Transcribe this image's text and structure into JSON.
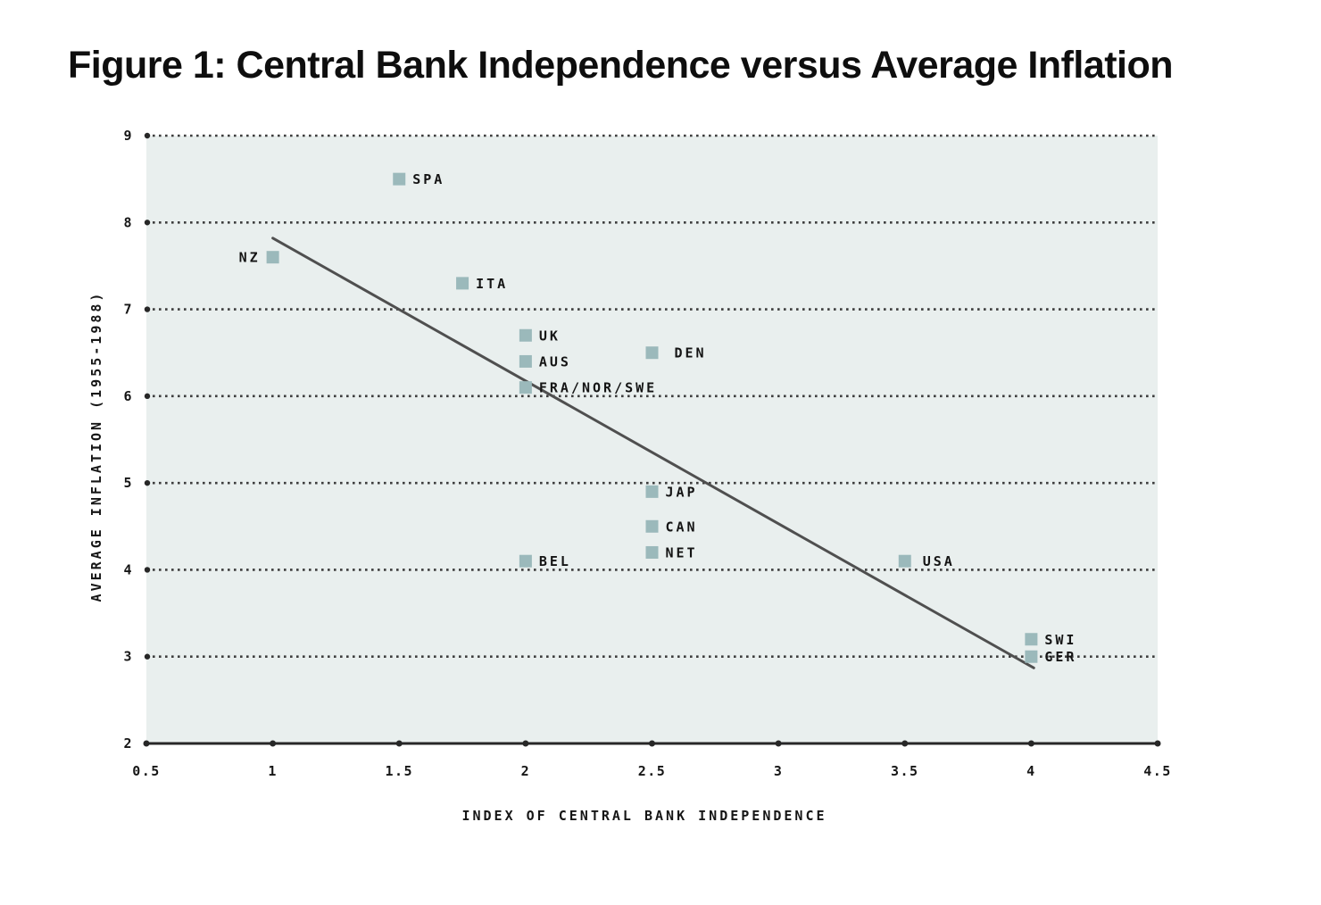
{
  "title": "Figure 1: Central Bank Independence versus Average Inflation",
  "colors": {
    "page_bg": "#ffffff",
    "plot_bg": "#e9efee",
    "marker": "#9bb9bb",
    "grid": "#3d3d3d",
    "axis": "#272727",
    "trend": "#4f4f4f",
    "text": "#161616"
  },
  "chart_data": {
    "type": "scatter",
    "title": "Figure 1: Central Bank Independence versus Average Inflation",
    "xlabel": "INDEX OF CENTRAL BANK INDEPENDENCE",
    "ylabel": "AVERAGE INFLATION (1955-1988)",
    "xlim": [
      0.5,
      4.5
    ],
    "ylim": [
      2,
      9
    ],
    "x_ticks": [
      0.5,
      1,
      1.5,
      2,
      2.5,
      3,
      3.5,
      4,
      4.5
    ],
    "x_tick_labels": [
      "0.5",
      "1",
      "1.5",
      "2",
      "2.5",
      "3",
      "3.5",
      "4",
      "4.5"
    ],
    "y_ticks": [
      2,
      3,
      4,
      5,
      6,
      7,
      8,
      9
    ],
    "y_tick_labels": [
      "2",
      "3",
      "4",
      "5",
      "6",
      "7",
      "8",
      "9"
    ],
    "grid": "horizontal-dotted",
    "legend": "none",
    "points": [
      {
        "label": "SPA",
        "x": 1.5,
        "y": 8.5,
        "side": "right"
      },
      {
        "label": "NZ",
        "x": 1.0,
        "y": 7.6,
        "side": "left"
      },
      {
        "label": "ITA",
        "x": 1.75,
        "y": 7.3,
        "side": "right"
      },
      {
        "label": "UK",
        "x": 2.0,
        "y": 6.7,
        "side": "right"
      },
      {
        "label": "DEN",
        "x": 2.5,
        "y": 6.5,
        "side": "right",
        "gap": 18
      },
      {
        "label": "AUS",
        "x": 2.0,
        "y": 6.4,
        "side": "right"
      },
      {
        "label": "FRA/NOR/SWE",
        "x": 2.0,
        "y": 6.1,
        "side": "right"
      },
      {
        "label": "JAP",
        "x": 2.5,
        "y": 4.9,
        "side": "right"
      },
      {
        "label": "CAN",
        "x": 2.5,
        "y": 4.5,
        "side": "right"
      },
      {
        "label": "NET",
        "x": 2.5,
        "y": 4.2,
        "side": "right"
      },
      {
        "label": "BEL",
        "x": 2.0,
        "y": 4.1,
        "side": "right"
      },
      {
        "label": "USA",
        "x": 3.5,
        "y": 4.1,
        "side": "right",
        "gap": 13
      },
      {
        "label": "SWI",
        "x": 4.0,
        "y": 3.2,
        "side": "right"
      },
      {
        "label": "GER",
        "x": 4.0,
        "y": 3.0,
        "side": "right"
      }
    ],
    "trend_line": {
      "x1": 1.0,
      "y1": 7.82,
      "x2": 4.01,
      "y2": 2.87
    }
  }
}
